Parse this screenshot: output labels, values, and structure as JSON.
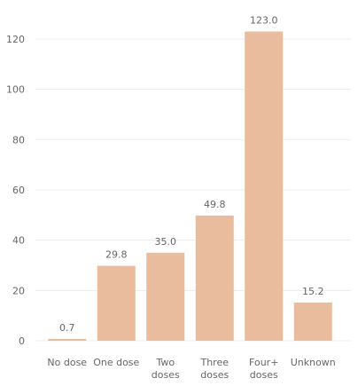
{
  "chart_data": {
    "type": "bar",
    "categories": [
      [
        "No dose"
      ],
      [
        "One dose"
      ],
      [
        "Two",
        "doses"
      ],
      [
        "Three",
        "doses"
      ],
      [
        "Four+",
        "doses"
      ],
      [
        "Unknown"
      ]
    ],
    "values": [
      0.7,
      29.8,
      35.0,
      49.8,
      123.0,
      15.2
    ],
    "value_labels": [
      "0.7",
      "29.8",
      "35.0",
      "49.8",
      "123.0",
      "15.2"
    ],
    "yticks": [
      0,
      20,
      40,
      60,
      80,
      100,
      120
    ],
    "ylim": [
      0,
      130
    ],
    "grid": true,
    "bar_color": "#e8bc9c"
  }
}
